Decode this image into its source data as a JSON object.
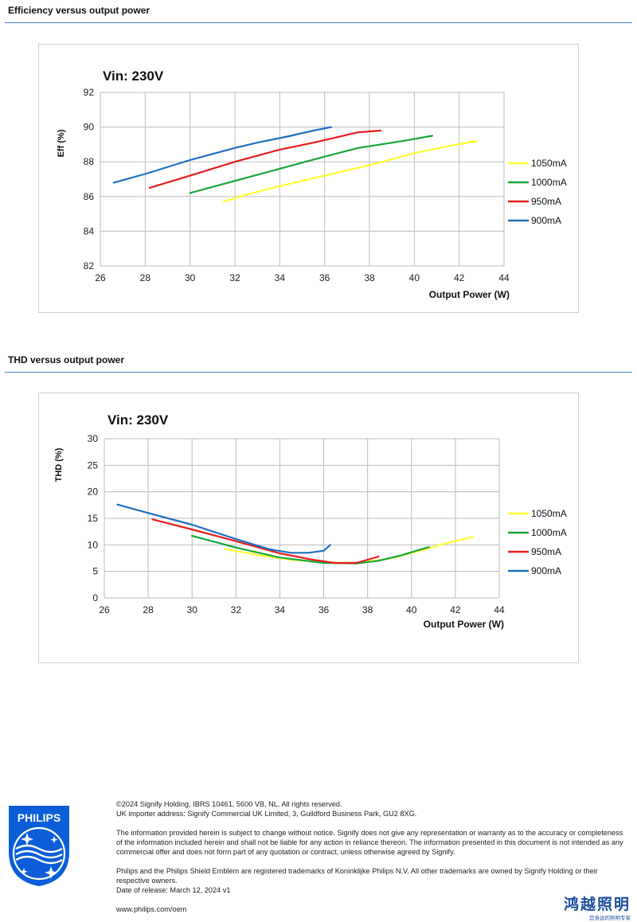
{
  "sections": {
    "efficiency_title": "Efficiency versus output power",
    "thd_title": "THD versus output power"
  },
  "charts": {
    "eff": {
      "vin_label": "Vin: 230V",
      "ylabel": "Eff  (%)",
      "xlabel": "Output Power (W)"
    },
    "thd": {
      "vin_label": "Vin: 230V",
      "ylabel": "THD  (%)",
      "xlabel": "Output Power (W)"
    }
  },
  "colors": {
    "1050mA": "#ffff33",
    "1000mA": "#1aa63a",
    "950mA": "#e51e1e",
    "900mA": "#1f6fc0",
    "rule": "#4a7fd0"
  },
  "chart_data": [
    {
      "type": "line",
      "title": "Vin: 230V",
      "xlabel": "Output Power (W)",
      "ylabel": "Eff  (%)",
      "xlim": [
        26,
        44
      ],
      "ylim": [
        82,
        92
      ],
      "xticks": [
        26,
        28,
        30,
        32,
        34,
        36,
        38,
        40,
        42,
        44
      ],
      "yticks": [
        82,
        84,
        86,
        88,
        90,
        92
      ],
      "grid": true,
      "legend": "right",
      "series": [
        {
          "name": "1050mA",
          "color": "#ffff33",
          "points": [
            [
              31.5,
              85.7
            ],
            [
              32.5,
              86.1
            ],
            [
              34,
              86.6
            ],
            [
              36,
              87.2
            ],
            [
              38,
              87.8
            ],
            [
              40,
              88.5
            ],
            [
              41.5,
              88.9
            ],
            [
              42.8,
              89.2
            ]
          ]
        },
        {
          "name": "1000mA",
          "color": "#1aa63a",
          "points": [
            [
              30,
              86.2
            ],
            [
              32,
              86.9
            ],
            [
              34,
              87.6
            ],
            [
              36,
              88.3
            ],
            [
              37.5,
              88.8
            ],
            [
              38.5,
              89.0
            ],
            [
              39.5,
              89.2
            ],
            [
              40.8,
              89.5
            ]
          ]
        },
        {
          "name": "950mA",
          "color": "#e51e1e",
          "points": [
            [
              28.2,
              86.5
            ],
            [
              30,
              87.2
            ],
            [
              32,
              88.0
            ],
            [
              34,
              88.7
            ],
            [
              35.5,
              89.1
            ],
            [
              36.5,
              89.4
            ],
            [
              37.5,
              89.7
            ],
            [
              38.5,
              89.8
            ]
          ]
        },
        {
          "name": "900mA",
          "color": "#1f6fc0",
          "points": [
            [
              26.6,
              86.8
            ],
            [
              28,
              87.3
            ],
            [
              30,
              88.1
            ],
            [
              32,
              88.8
            ],
            [
              33,
              89.1
            ],
            [
              34.5,
              89.5
            ],
            [
              35.5,
              89.8
            ],
            [
              36.3,
              90.0
            ]
          ]
        }
      ]
    },
    {
      "type": "line",
      "title": "Vin: 230V",
      "xlabel": "Output Power (W)",
      "ylabel": "THD  (%)",
      "xlim": [
        26,
        44
      ],
      "ylim": [
        0,
        30
      ],
      "xticks": [
        26,
        28,
        30,
        32,
        34,
        36,
        38,
        40,
        42,
        44
      ],
      "yticks": [
        0,
        5,
        10,
        15,
        20,
        25,
        30
      ],
      "grid": true,
      "legend": "right",
      "series": [
        {
          "name": "1050mA",
          "color": "#ffff33",
          "points": [
            [
              31.5,
              9.2
            ],
            [
              33,
              8.1
            ],
            [
              34.5,
              7.2
            ],
            [
              36,
              6.7
            ],
            [
              37.5,
              6.6
            ],
            [
              39,
              7.4
            ],
            [
              40.5,
              9.0
            ],
            [
              41.5,
              10.2
            ],
            [
              42.8,
              11.5
            ]
          ]
        },
        {
          "name": "1000mA",
          "color": "#1aa63a",
          "points": [
            [
              30,
              11.7
            ],
            [
              32,
              9.5
            ],
            [
              34,
              7.6
            ],
            [
              36,
              6.6
            ],
            [
              37.5,
              6.5
            ],
            [
              38.5,
              7.0
            ],
            [
              39.5,
              8.0
            ],
            [
              40.8,
              9.6
            ]
          ]
        },
        {
          "name": "950mA",
          "color": "#e51e1e",
          "points": [
            [
              28.2,
              14.8
            ],
            [
              30,
              12.9
            ],
            [
              32,
              10.7
            ],
            [
              34,
              8.4
            ],
            [
              35.5,
              7.2
            ],
            [
              36.5,
              6.6
            ],
            [
              37.5,
              6.6
            ],
            [
              38.5,
              7.8
            ]
          ]
        },
        {
          "name": "900mA",
          "color": "#1f6fc0",
          "points": [
            [
              26.6,
              17.6
            ],
            [
              28,
              16.0
            ],
            [
              30,
              13.8
            ],
            [
              32,
              11.1
            ],
            [
              33.5,
              9.2
            ],
            [
              34.5,
              8.5
            ],
            [
              35.3,
              8.5
            ],
            [
              36,
              8.9
            ],
            [
              36.3,
              10.0
            ]
          ]
        }
      ]
    }
  ],
  "footer": {
    "lines": [
      "©2024 Signify Holding, IBRS 10461, 5600 VB, NL. All rights reserved.",
      "UK importer address: Signify Commercial UK Limited, 3, Guildford Business Park, GU2 8XG."
    ],
    "disclaimer": "The information provided herein is subject to change without notice. Signify does not give any representation or warranty as to the accuracy or completeness of the information included herein and shall not be liable for any action in reliance thereon. The information presented in this document is not intended as any commercial offer and does not form part of any quotation or contract, unless otherwise agreed by Signify.",
    "trademark": "Philips and the Philips Shield Emblem are registered trademarks of Koninklijke Philips N.V. All other trademarks are owned by Signify Holding or their respective owners.",
    "release": "Date of release: March 12, 2024 v1",
    "url": "www.philips.com/oem"
  },
  "logo": {
    "text": "PHILIPS",
    "icon": "philips-shield-icon"
  },
  "watermark": {
    "text": "鸿越照明",
    "sub": "您身边的照明专家"
  }
}
